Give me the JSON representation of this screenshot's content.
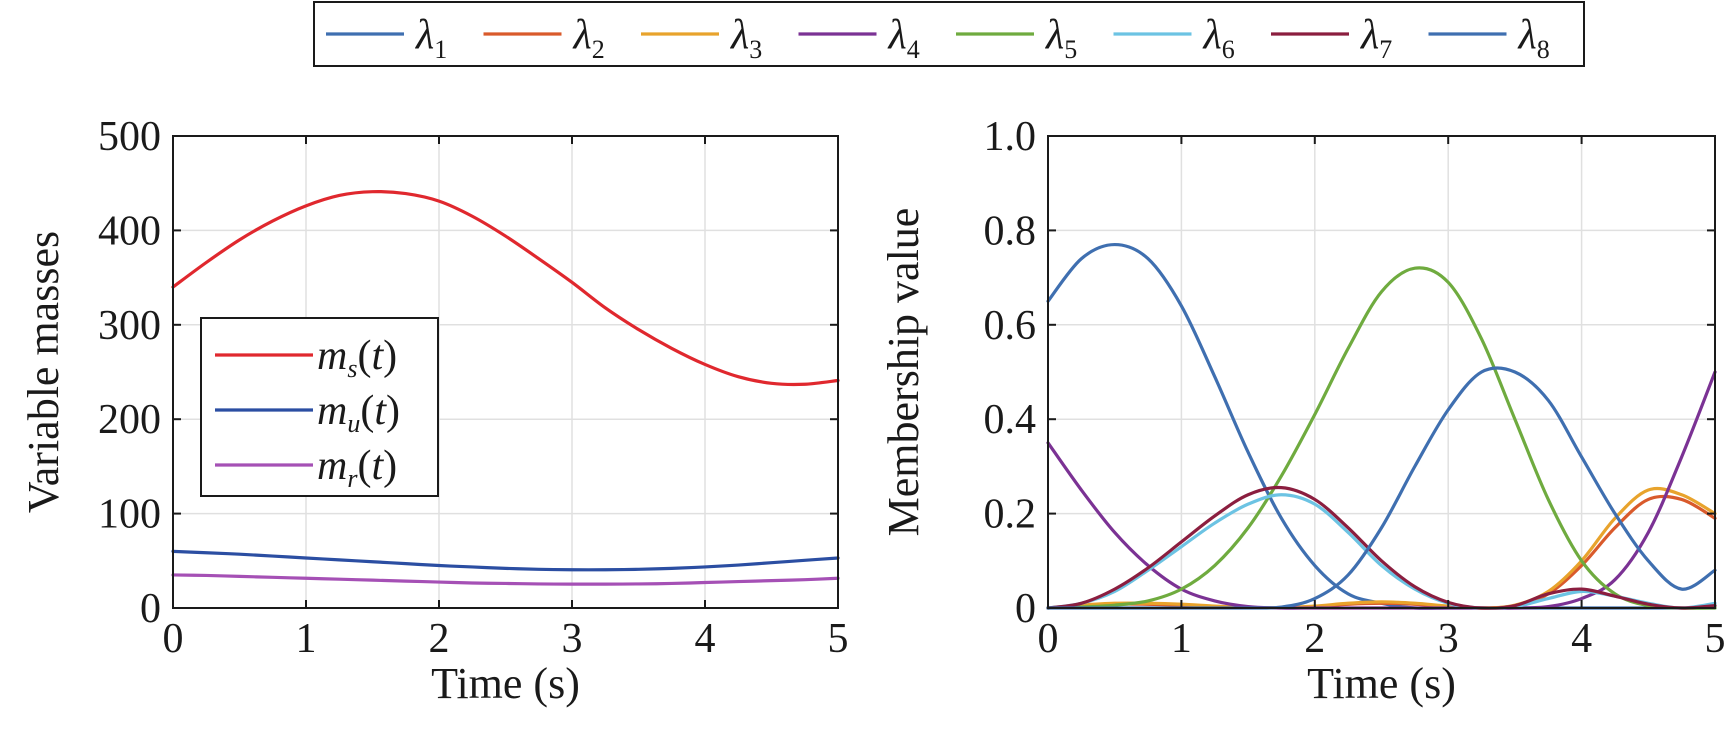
{
  "chart_data": [
    {
      "type": "line",
      "xlabel": "Time (s)",
      "ylabel": "Variable masses",
      "xlim": [
        0,
        5
      ],
      "ylim": [
        0,
        500
      ],
      "xticks": [
        "0",
        "1",
        "2",
        "3",
        "4",
        "5"
      ],
      "yticks": [
        "0",
        "100",
        "200",
        "300",
        "400",
        "500"
      ],
      "grid": true,
      "legend_position": "middle-left",
      "x": [
        0,
        0.25,
        0.5,
        0.75,
        1.0,
        1.25,
        1.5,
        1.75,
        2.0,
        2.25,
        2.5,
        2.75,
        3.0,
        3.25,
        3.5,
        3.75,
        4.0,
        4.25,
        4.5,
        4.75,
        5.0
      ],
      "series": [
        {
          "name": "m_s(t)",
          "base": "m",
          "sub": "s",
          "color": "#e0282e",
          "values": [
            340,
            366,
            390,
            410,
            426,
            437,
            441,
            439,
            431,
            415,
            394,
            370,
            345,
            318,
            295,
            275,
            258,
            245,
            238,
            237,
            241
          ]
        },
        {
          "name": "m_u(t)",
          "base": "m",
          "sub": "u",
          "color": "#2b4ea2",
          "values": [
            60,
            58.5,
            57,
            55,
            53,
            51,
            49,
            47,
            45,
            43.5,
            42,
            41,
            40.5,
            40.5,
            41,
            42,
            43.5,
            45.5,
            48,
            50.5,
            53
          ]
        },
        {
          "name": "m_r(t)",
          "base": "m",
          "sub": "r",
          "color": "#a550b5",
          "values": [
            35,
            34.5,
            33.5,
            32.5,
            31.5,
            30.5,
            29.5,
            28.5,
            27.5,
            26.5,
            26,
            25.5,
            25.3,
            25.3,
            25.5,
            26,
            27,
            28,
            29,
            30,
            31.5
          ]
        }
      ]
    },
    {
      "type": "line",
      "xlabel": "Time (s)",
      "ylabel": "Membership value",
      "xlim": [
        0,
        5
      ],
      "ylim": [
        0,
        1
      ],
      "xticks": [
        "0",
        "1",
        "2",
        "3",
        "4",
        "5"
      ],
      "yticks": [
        "0",
        "0.2",
        "0.4",
        "0.6",
        "0.8",
        "1.0"
      ],
      "grid": true,
      "legend_position": "top-outside",
      "x": [
        0,
        0.25,
        0.5,
        0.75,
        1.0,
        1.25,
        1.5,
        1.75,
        2.0,
        2.25,
        2.5,
        2.75,
        3.0,
        3.25,
        3.5,
        3.75,
        4.0,
        4.25,
        4.5,
        4.75,
        5.0
      ],
      "series": [
        {
          "name": "λ1",
          "base": "λ",
          "sub": "1",
          "color": "#3f6fb0",
          "values": [
            0.65,
            0.74,
            0.77,
            0.74,
            0.64,
            0.49,
            0.33,
            0.19,
            0.09,
            0.03,
            0.01,
            0.0,
            0.0,
            0.0,
            0.0,
            0.0,
            0.0,
            0.0,
            0.0,
            0.0,
            0.0
          ]
        },
        {
          "name": "λ2",
          "base": "λ",
          "sub": "2",
          "color": "#d95a2b",
          "values": [
            0,
            0.005,
            0.008,
            0.008,
            0.006,
            0.003,
            0.001,
            0.001,
            0.003,
            0.008,
            0.01,
            0.008,
            0.003,
            0.0,
            0.005,
            0.03,
            0.09,
            0.17,
            0.23,
            0.23,
            0.19
          ]
        },
        {
          "name": "λ3",
          "base": "λ",
          "sub": "3",
          "color": "#e8a32c",
          "values": [
            0,
            0.006,
            0.01,
            0.01,
            0.008,
            0.004,
            0.001,
            0.001,
            0.004,
            0.01,
            0.013,
            0.01,
            0.004,
            0.0,
            0.006,
            0.035,
            0.1,
            0.19,
            0.25,
            0.24,
            0.2
          ]
        },
        {
          "name": "λ4",
          "base": "λ",
          "sub": "4",
          "color": "#7b3294",
          "values": [
            0.35,
            0.25,
            0.16,
            0.09,
            0.04,
            0.015,
            0.003,
            0.0,
            0.0,
            0.0,
            0.0,
            0.0,
            0.0,
            0.0,
            0.0,
            0.003,
            0.02,
            0.06,
            0.16,
            0.32,
            0.5
          ]
        },
        {
          "name": "λ5",
          "base": "λ",
          "sub": "5",
          "color": "#6fab3f",
          "values": [
            0,
            0.002,
            0.006,
            0.015,
            0.04,
            0.09,
            0.17,
            0.28,
            0.41,
            0.55,
            0.67,
            0.72,
            0.69,
            0.57,
            0.4,
            0.23,
            0.1,
            0.03,
            0.005,
            0.0,
            0.0
          ]
        },
        {
          "name": "λ6",
          "base": "λ",
          "sub": "6",
          "color": "#6cc3e3",
          "values": [
            0,
            0.01,
            0.035,
            0.08,
            0.13,
            0.18,
            0.22,
            0.24,
            0.22,
            0.16,
            0.09,
            0.04,
            0.01,
            0.0,
            0.003,
            0.02,
            0.035,
            0.025,
            0.01,
            0.0,
            0.01
          ]
        },
        {
          "name": "λ7",
          "base": "λ",
          "sub": "7",
          "color": "#8b1e3f",
          "values": [
            0,
            0.01,
            0.04,
            0.085,
            0.14,
            0.195,
            0.24,
            0.255,
            0.23,
            0.17,
            0.1,
            0.045,
            0.012,
            0.0,
            0.005,
            0.03,
            0.04,
            0.025,
            0.008,
            0.0,
            0.005
          ]
        },
        {
          "name": "λ8",
          "base": "λ",
          "sub": "8",
          "color": "#3f6fb0",
          "values": [
            0,
            0.0,
            0.0,
            0.0,
            0.0,
            0.0,
            0.0,
            0.002,
            0.02,
            0.07,
            0.17,
            0.3,
            0.42,
            0.5,
            0.5,
            0.44,
            0.32,
            0.2,
            0.1,
            0.04,
            0.08
          ]
        }
      ]
    }
  ]
}
